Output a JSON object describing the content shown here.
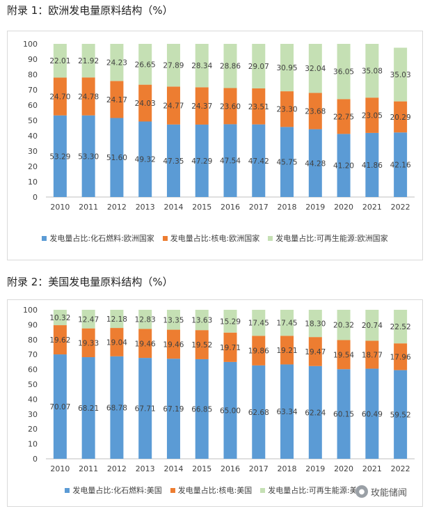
{
  "colors": {
    "fossil": "#5b9bd5",
    "nuclear": "#ed7d31",
    "renewable": "#c5e0b4",
    "axis": "#bfbfbf",
    "label": "#404040"
  },
  "watermark": {
    "icon": "wechat-icon",
    "text": "玫能储闻"
  },
  "chart_data": [
    {
      "type": "bar",
      "stacked": true,
      "title": "附录 1：欧洲发电量原料结构（%）",
      "categories": [
        "2010",
        "2011",
        "2012",
        "2013",
        "2014",
        "2015",
        "2016",
        "2017",
        "2018",
        "2019",
        "2020",
        "2021",
        "2022"
      ],
      "ylim": [
        0,
        100
      ],
      "yticks": [
        0,
        10,
        20,
        30,
        40,
        50,
        60,
        70,
        80,
        90,
        100
      ],
      "grid": false,
      "legend_position": "bottom",
      "series": [
        {
          "name": "发电量占比:化石燃料:欧洲国家",
          "color_key": "fossil",
          "values": [
            53.29,
            53.3,
            51.6,
            49.32,
            47.35,
            47.29,
            47.54,
            47.42,
            45.75,
            44.28,
            41.2,
            41.86,
            42.16
          ]
        },
        {
          "name": "发电量占比:核电:欧洲国家",
          "color_key": "nuclear",
          "values": [
            24.7,
            24.78,
            24.17,
            24.03,
            24.77,
            24.37,
            23.6,
            23.51,
            23.3,
            23.68,
            22.75,
            23.05,
            20.29
          ]
        },
        {
          "name": "发电量占比:可再生能源:欧洲国家",
          "color_key": "renewable",
          "values": [
            22.01,
            21.92,
            24.23,
            26.65,
            27.89,
            28.34,
            28.86,
            29.07,
            30.95,
            32.04,
            36.05,
            35.08,
            35.03
          ]
        }
      ]
    },
    {
      "type": "bar",
      "stacked": true,
      "title": "附录 2：美国发电量原料结构（%）",
      "categories": [
        "2010",
        "2011",
        "2012",
        "2013",
        "2014",
        "2015",
        "2016",
        "2017",
        "2018",
        "2019",
        "2020",
        "2021",
        "2022"
      ],
      "ylim": [
        0,
        100
      ],
      "yticks": [
        0,
        10,
        20,
        30,
        40,
        50,
        60,
        70,
        80,
        90,
        100
      ],
      "grid": false,
      "legend_position": "bottom",
      "series": [
        {
          "name": "发电量占比:化石燃料:美国",
          "color_key": "fossil",
          "values": [
            70.07,
            68.21,
            68.78,
            67.71,
            67.19,
            66.85,
            65.0,
            62.68,
            63.34,
            62.24,
            60.15,
            60.49,
            59.52
          ]
        },
        {
          "name": "发电量占比:核电:美国",
          "color_key": "nuclear",
          "values": [
            19.62,
            19.33,
            19.04,
            19.46,
            19.46,
            19.52,
            19.71,
            19.86,
            19.21,
            19.47,
            19.54,
            18.77,
            17.96
          ]
        },
        {
          "name": "发电量占比:可再生能源:美国",
          "color_key": "renewable",
          "values": [
            10.32,
            12.47,
            12.18,
            12.83,
            13.35,
            13.63,
            15.29,
            17.45,
            17.45,
            18.3,
            20.32,
            20.74,
            22.52
          ]
        }
      ]
    }
  ]
}
